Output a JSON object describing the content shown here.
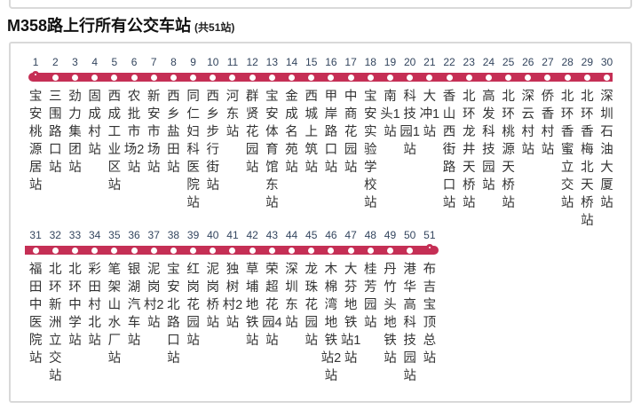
{
  "route": {
    "title": "M358路上行所有公交车站",
    "subtitle": "(共51站)",
    "total_stations": 51,
    "rows": [
      {
        "start": 1,
        "terminal": "start",
        "stations": [
          "宝安桃源居站",
          "三围路口站",
          "劲力集团站",
          "固成村站",
          "西成工业区站",
          "农批市场2站",
          "新安市场站",
          "西乡盐田站",
          "同仁妇科医院站",
          "西乡步行街站",
          "河东站",
          "群贤花园站",
          "宝安体育馆东站",
          "金成名苑站",
          "西城上筑站",
          "甲岸路口站",
          "中商花园站",
          "宝安实验学校站",
          "南头1站",
          "科技园1站",
          "大冲1站",
          "香山西街路口站",
          "北环龙井天桥站",
          "高发科技园站",
          "北环桃源天桥站",
          "深云村站",
          "侨香村站",
          "北环香蜜立交站",
          "北环香梅北天桥站",
          "深圳石油大厦站"
        ]
      },
      {
        "start": 31,
        "terminal": "end",
        "stations": [
          "福田中医院站",
          "北环新洲立交站",
          "北环中学站",
          "彩田村北站",
          "笔架山水厂站",
          "银湖汽车站",
          "泥岗村2站",
          "宝安北路口站",
          "红岗花园站",
          "泥岗桥站",
          "独树村2站",
          "草埔地铁站",
          "荣超花园4站",
          "深圳东站",
          "龙珠花园站",
          "木棉湾地铁站2站",
          "大芬地铁站1站",
          "桂芳园站",
          "丹竹头地铁站",
          "港华高科技园站",
          "布吉宝顶总站"
        ]
      }
    ]
  },
  "colors": {
    "line": "#c52f55",
    "number": "#33455e",
    "station_text": "#333333",
    "border": "#d9d9d9"
  }
}
